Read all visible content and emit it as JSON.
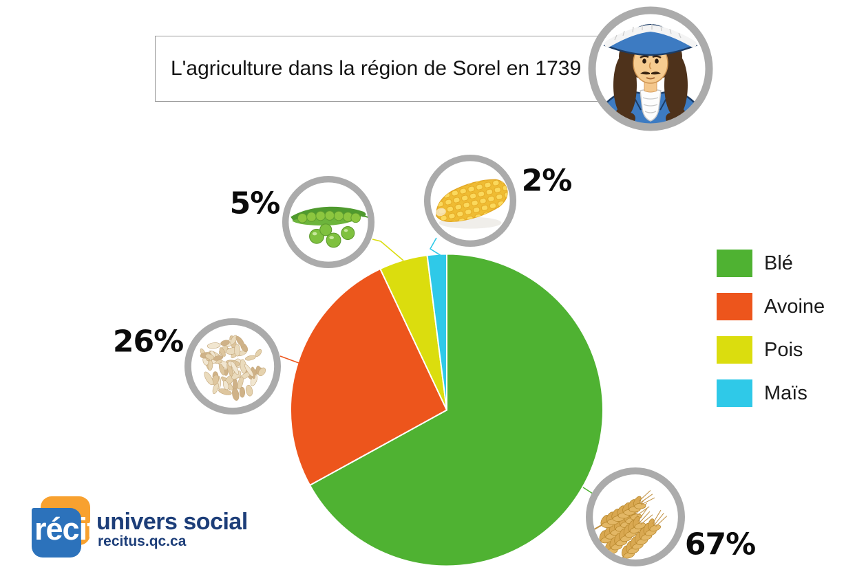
{
  "header": {
    "title": "L'agriculture dans la région de Sorel en 1739"
  },
  "chart_data": {
    "type": "pie",
    "title": "L'agriculture dans la région de Sorel en 1739",
    "unit": "percent",
    "direction": "clockwise",
    "start_angle_deg": 0,
    "legend_position": "right",
    "slices": [
      {
        "name": "Blé",
        "value": 67,
        "percent_label": "67%",
        "color": "#4FB232",
        "icon": "wheat-icon"
      },
      {
        "name": "Avoine",
        "value": 26,
        "percent_label": "26%",
        "color": "#ED551C",
        "icon": "oats-icon"
      },
      {
        "name": "Pois",
        "value": 5,
        "percent_label": "5%",
        "color": "#DBDD0E",
        "icon": "peas-icon"
      },
      {
        "name": "Maïs",
        "value": 2,
        "percent_label": "2%",
        "color": "#2FC9E8",
        "icon": "corn-icon"
      }
    ]
  },
  "portrait": {
    "icon": "new-france-colonist-icon"
  },
  "logo": {
    "brand": "récit",
    "name": "univers social",
    "url": "recitus.qc.ca",
    "blue": "#2C72BB",
    "orange": "#F8A12F",
    "navy": "#1D3E79"
  },
  "style": {
    "ring_gray": "#ABABAB",
    "title_border": "#9A9A9A"
  }
}
